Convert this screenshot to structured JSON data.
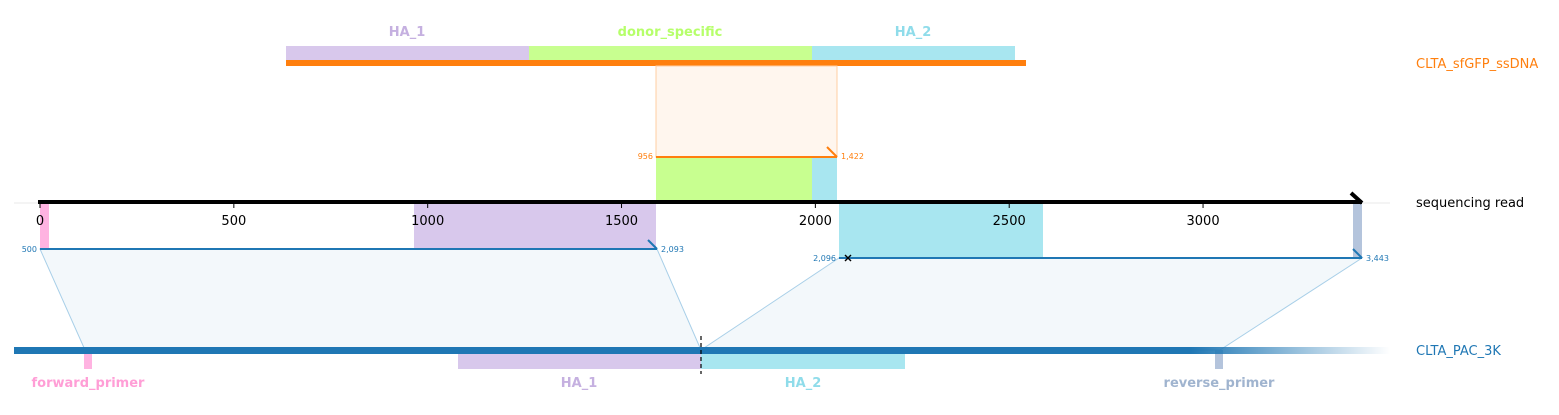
{
  "tracks": {
    "donor": {
      "name": "CLTA_sfGFP_ssDNA",
      "color": "#ff7f0e"
    },
    "read": {
      "name": "sequencing read",
      "color": "#000000"
    },
    "reference": {
      "name": "CLTA_PAC_3K",
      "color": "#1f77b4"
    }
  },
  "donor_features": [
    {
      "name": "HA_1",
      "color": "#d8c8ec",
      "label_color": "#c5b0e0"
    },
    {
      "name": "donor_specific",
      "color": "#c8ff90",
      "label_color": "#b6ff6a"
    },
    {
      "name": "HA_2",
      "color": "#a8e6f0",
      "label_color": "#8fdcea"
    }
  ],
  "reference_features": [
    {
      "name": "forward_primer",
      "color": "#ffb3e1",
      "label_color": "#ff9ed6"
    },
    {
      "name": "HA_1",
      "color": "#d8c8ec",
      "label_color": "#c5b0e0"
    },
    {
      "name": "HA_2",
      "color": "#a8e6f0",
      "label_color": "#8fdcea"
    },
    {
      "name": "reverse_primer",
      "color": "#b4c4dc",
      "label_color": "#a0b4cf"
    }
  ],
  "axis": {
    "ticks": [
      0,
      500,
      1000,
      1500,
      2000,
      2500,
      3000
    ],
    "tick_labels": [
      "0",
      "500",
      "1000",
      "1500",
      "2000",
      "2500",
      "3000"
    ],
    "read_length": 3410
  },
  "alignments": [
    {
      "target": "donor",
      "read_start": 1590,
      "read_end": 2066,
      "label_start": "956",
      "label_end": "1,422",
      "color": "#ff7f0e"
    },
    {
      "target": "reference",
      "read_start": 0,
      "read_end": 1596,
      "label_start": "500",
      "label_end": "2,093",
      "color": "#1f77b4"
    },
    {
      "target": "reference",
      "read_start": 2066,
      "read_end": 3410,
      "label_start": "2,096",
      "label_end": "3,443",
      "color": "#1f77b4"
    }
  ],
  "read_features": [
    {
      "name": "forward_primer",
      "start": 0,
      "end": 24,
      "color": "#ffb3e1"
    },
    {
      "name": "HA_1",
      "start": 965,
      "end": 1590,
      "color": "#d8c8ec"
    },
    {
      "name": "donor_specific",
      "start": 1590,
      "end": 1996,
      "color": "#c8ff90"
    },
    {
      "name": "HA_2",
      "start": 1996,
      "end": 2590,
      "color": "#a8e6f0"
    },
    {
      "name": "reverse_primer",
      "start": 3388,
      "end": 3410,
      "color": "#b4c4dc"
    }
  ]
}
